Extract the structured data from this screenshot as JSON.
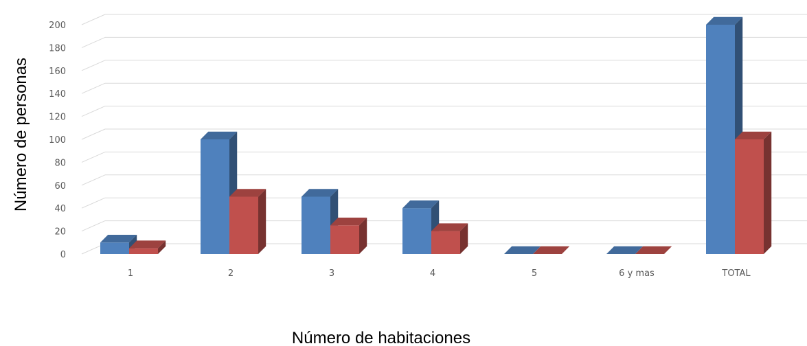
{
  "chart_data": {
    "type": "bar",
    "subtype": "3d-clustered-column",
    "title": "",
    "xlabel": "Número de habitaciones",
    "ylabel": "Número de personas",
    "categories": [
      "1",
      "2",
      "3",
      "4",
      "5",
      "6 y mas",
      "TOTAL"
    ],
    "series": [
      {
        "values": [
          10,
          100,
          50,
          40,
          0,
          0,
          200
        ],
        "color": "#4F81BD"
      },
      {
        "values": [
          5,
          50,
          25,
          20,
          0,
          0,
          100
        ],
        "color": "#C0504D"
      }
    ],
    "ylim": [
      0,
      200
    ],
    "yticks": [
      0,
      20,
      40,
      60,
      80,
      100,
      120,
      140,
      160,
      180,
      200
    ],
    "grid": true,
    "legend": "none"
  }
}
